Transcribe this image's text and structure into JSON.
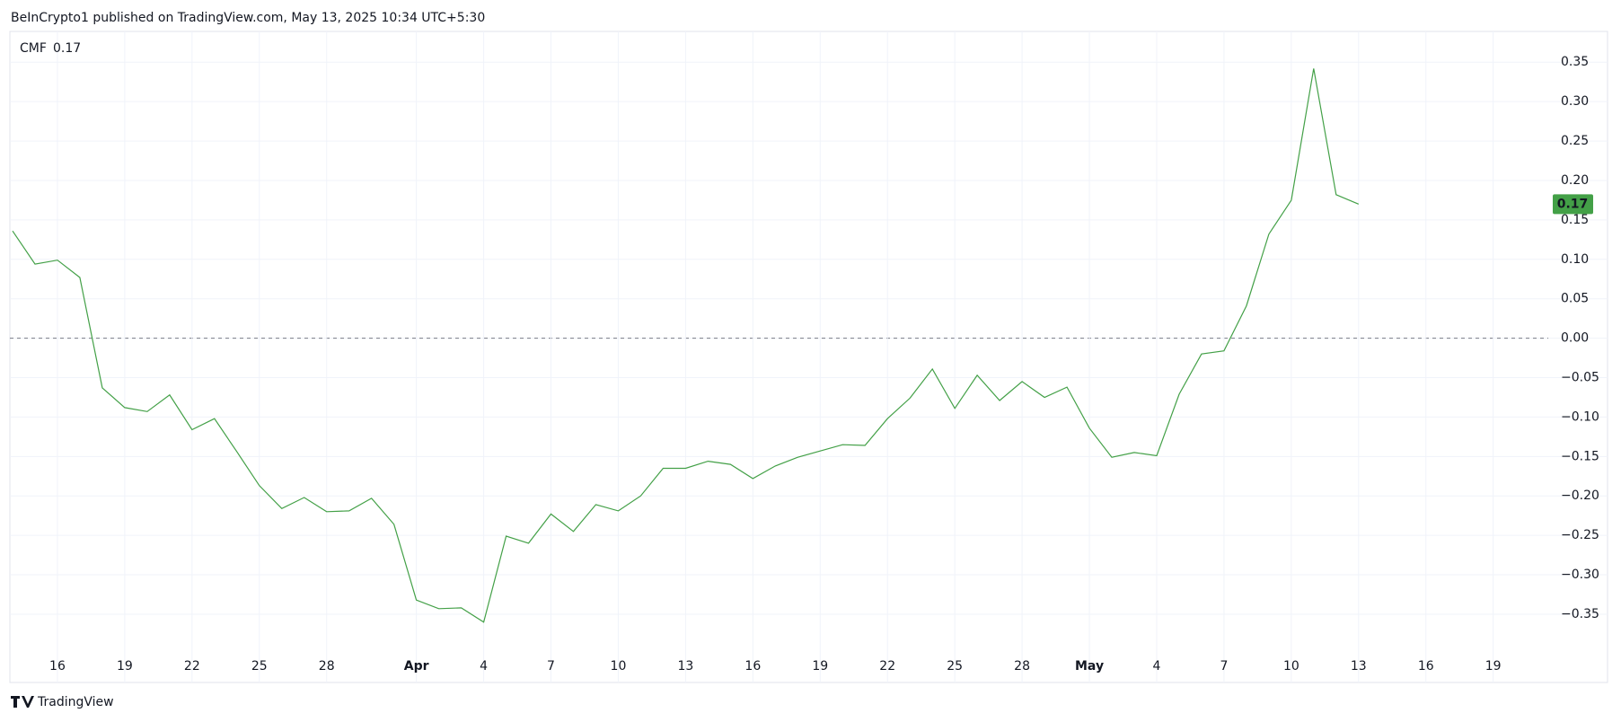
{
  "header": "BeInCrypto1 published on TradingView.com, May 13, 2025 10:34 UTC+5:30",
  "footer": "TradingView",
  "chart_data": {
    "type": "line",
    "categories": [
      null,
      null,
      "16",
      null,
      null,
      "19",
      null,
      null,
      "22",
      null,
      null,
      "25",
      null,
      null,
      "28",
      null,
      null,
      null,
      "Apr",
      null,
      null,
      "4",
      null,
      null,
      "7",
      null,
      null,
      "10",
      null,
      null,
      "13",
      null,
      null,
      "16",
      null,
      null,
      "19",
      null,
      null,
      "22",
      null,
      null,
      "25",
      null,
      null,
      "28",
      null,
      null,
      "May",
      null,
      null,
      "4",
      null,
      null,
      "7",
      null,
      null,
      "10",
      null,
      null,
      "13",
      null,
      null,
      "16",
      null,
      null,
      "19",
      null,
      null
    ],
    "series": [
      {
        "name": "CMF",
        "color": "#43a047",
        "last_label": "0.17",
        "values": [
          0.136,
          0.094,
          0.099,
          0.077,
          -0.063,
          -0.088,
          -0.093,
          -0.072,
          -0.116,
          -0.102,
          -0.144,
          -0.187,
          -0.216,
          -0.202,
          -0.22,
          -0.219,
          -0.203,
          -0.236,
          -0.332,
          -0.343,
          -0.342,
          -0.36,
          -0.251,
          -0.26,
          -0.223,
          -0.245,
          -0.211,
          -0.219,
          -0.2,
          -0.165,
          -0.165,
          -0.156,
          -0.16,
          -0.178,
          -0.162,
          -0.151,
          -0.143,
          -0.135,
          -0.136,
          -0.102,
          -0.076,
          -0.039,
          -0.089,
          -0.047,
          -0.079,
          -0.055,
          -0.075,
          -0.062,
          -0.114,
          -0.151,
          -0.145,
          -0.149,
          -0.071,
          -0.02,
          -0.016,
          0.041,
          0.132,
          0.175,
          0.342,
          0.182,
          0.17,
          null,
          null,
          null,
          null,
          null,
          null,
          null,
          null
        ]
      }
    ],
    "ylim": [
      -0.399,
      0.389
    ],
    "yticks": [
      {
        "value": -0.35,
        "label": "−0.35"
      },
      {
        "value": -0.3,
        "label": "−0.30"
      },
      {
        "value": -0.25,
        "label": "−0.25"
      },
      {
        "value": -0.2,
        "label": "−0.20"
      },
      {
        "value": -0.15,
        "label": "−0.15"
      },
      {
        "value": -0.1,
        "label": "−0.10"
      },
      {
        "value": -0.05,
        "label": "−0.05"
      },
      {
        "value": 0,
        "label": "0.00"
      },
      {
        "value": 0.05,
        "label": "0.05"
      },
      {
        "value": 0.1,
        "label": "0.10"
      },
      {
        "value": 0.15,
        "label": "0.15"
      },
      {
        "value": 0.2,
        "label": "0.20"
      },
      {
        "value": 0.25,
        "label": "0.25"
      },
      {
        "value": 0.3,
        "label": "0.30"
      },
      {
        "value": 0.35,
        "label": "0.35"
      }
    ],
    "grid": true,
    "zero_line": true
  }
}
